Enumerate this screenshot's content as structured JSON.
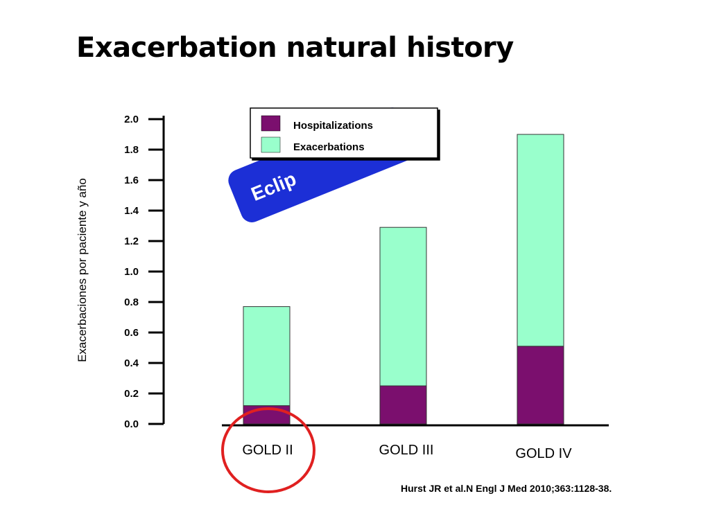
{
  "slide": {
    "title": "Exacerbation natural history",
    "citation": "Hurst JR et al.N Engl J Med 2010;363:1128-38.",
    "badge_text": "Eclip"
  },
  "colors": {
    "hospitalizations": "#7b0f6e",
    "exacerbations": "#99ffcc",
    "badge": "#1c2fd6",
    "highlight_circle": "#e02020"
  },
  "chart_data": {
    "type": "bar",
    "stacked": true,
    "title": "",
    "xlabel": "",
    "ylabel": "Exacerbaciones por paciente y año",
    "ylim": [
      0,
      2.0
    ],
    "yticks": [
      "0.0",
      "0.2",
      "0.4",
      "0.6",
      "0.8",
      "1.0",
      "1.2",
      "1.4",
      "1.6",
      "1.8",
      "2.0"
    ],
    "categories": [
      "GOLD II",
      "GOLD III",
      "GOLD IV"
    ],
    "series": [
      {
        "name": "Hospitalizations",
        "values": [
          0.12,
          0.25,
          0.51
        ]
      },
      {
        "name": "Exacerbations",
        "values": [
          0.65,
          1.04,
          1.39
        ]
      }
    ],
    "highlighted_category": "GOLD II",
    "grid": false,
    "legend_position": "top"
  }
}
